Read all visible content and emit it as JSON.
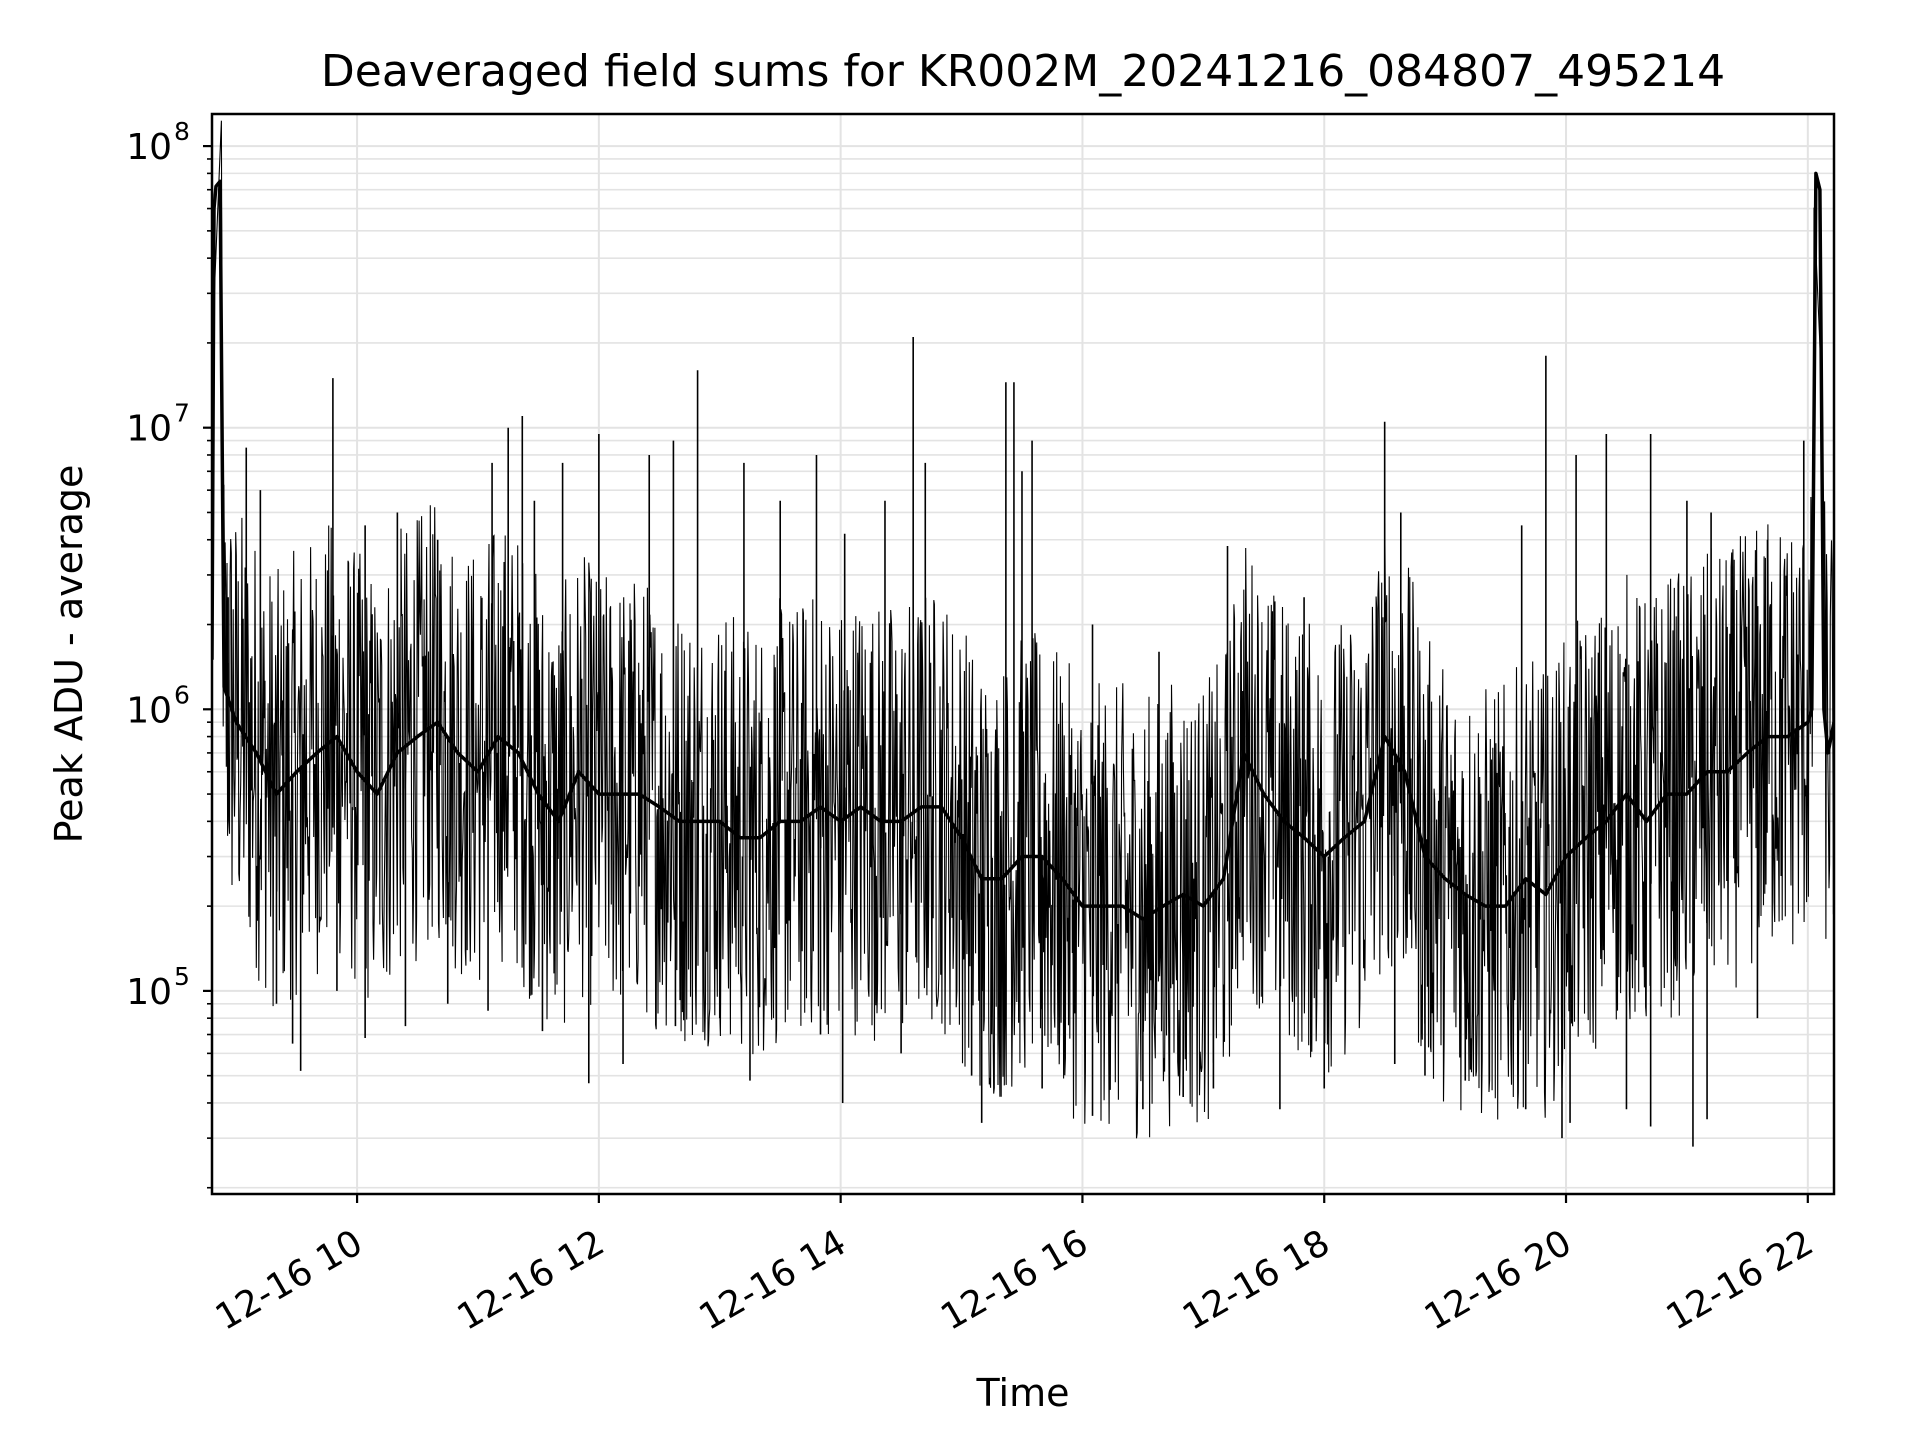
{
  "chart_data": {
    "type": "line",
    "title": "Deaveraged field sums for KR002M_20241216_084807_495214",
    "xlabel": "Time",
    "ylabel": "Peak ADU - average",
    "y_scale": "log",
    "ylim": [
      19000,
      130000000
    ],
    "xlim": [
      "2024-12-16 08:48",
      "2024-12-16 22:13"
    ],
    "x_ticks": [
      {
        "t": "2024-12-16 10:00",
        "label": "12-16 10"
      },
      {
        "t": "2024-12-16 12:00",
        "label": "12-16 12"
      },
      {
        "t": "2024-12-16 14:00",
        "label": "12-16 14"
      },
      {
        "t": "2024-12-16 16:00",
        "label": "12-16 16"
      },
      {
        "t": "2024-12-16 18:00",
        "label": "12-16 18"
      },
      {
        "t": "2024-12-16 20:00",
        "label": "12-16 20"
      },
      {
        "t": "2024-12-16 22:00",
        "label": "12-16 22"
      }
    ],
    "y_ticks": [
      {
        "value": 100000,
        "base": "10",
        "exp": "5"
      },
      {
        "value": 1000000,
        "base": "10",
        "exp": "6"
      },
      {
        "value": 10000000,
        "base": "10",
        "exp": "7"
      },
      {
        "value": 100000000,
        "base": "10",
        "exp": "8"
      }
    ],
    "grid": true,
    "line_color": "#000000",
    "grid_color": "#e3e3e3",
    "series": [
      {
        "x": [
          "2024-12-16 08:48",
          "2024-12-16 08:49",
          "2024-12-16 08:50",
          "2024-12-16 08:52",
          "2024-12-16 08:54",
          "2024-12-16 09:00",
          "2024-12-16 09:10",
          "2024-12-16 09:20",
          "2024-12-16 09:30",
          "2024-12-16 09:40",
          "2024-12-16 09:50",
          "2024-12-16 10:00",
          "2024-12-16 10:10",
          "2024-12-16 10:20",
          "2024-12-16 10:30",
          "2024-12-16 10:40",
          "2024-12-16 10:50",
          "2024-12-16 11:00",
          "2024-12-16 11:10",
          "2024-12-16 11:20",
          "2024-12-16 11:30",
          "2024-12-16 11:40",
          "2024-12-16 11:50",
          "2024-12-16 12:00",
          "2024-12-16 12:10",
          "2024-12-16 12:20",
          "2024-12-16 12:30",
          "2024-12-16 12:40",
          "2024-12-16 12:50",
          "2024-12-16 13:00",
          "2024-12-16 13:10",
          "2024-12-16 13:20",
          "2024-12-16 13:30",
          "2024-12-16 13:40",
          "2024-12-16 13:50",
          "2024-12-16 14:00",
          "2024-12-16 14:10",
          "2024-12-16 14:20",
          "2024-12-16 14:30",
          "2024-12-16 14:40",
          "2024-12-16 14:50",
          "2024-12-16 15:00",
          "2024-12-16 15:10",
          "2024-12-16 15:20",
          "2024-12-16 15:30",
          "2024-12-16 15:40",
          "2024-12-16 15:50",
          "2024-12-16 16:00",
          "2024-12-16 16:10",
          "2024-12-16 16:20",
          "2024-12-16 16:30",
          "2024-12-16 16:40",
          "2024-12-16 16:50",
          "2024-12-16 17:00",
          "2024-12-16 17:10",
          "2024-12-16 17:20",
          "2024-12-16 17:30",
          "2024-12-16 17:40",
          "2024-12-16 17:50",
          "2024-12-16 18:00",
          "2024-12-16 18:10",
          "2024-12-16 18:20",
          "2024-12-16 18:30",
          "2024-12-16 18:40",
          "2024-12-16 18:50",
          "2024-12-16 19:00",
          "2024-12-16 19:10",
          "2024-12-16 19:20",
          "2024-12-16 19:30",
          "2024-12-16 19:40",
          "2024-12-16 19:50",
          "2024-12-16 20:00",
          "2024-12-16 20:10",
          "2024-12-16 20:20",
          "2024-12-16 20:30",
          "2024-12-16 20:40",
          "2024-12-16 20:50",
          "2024-12-16 21:00",
          "2024-12-16 21:10",
          "2024-12-16 21:20",
          "2024-12-16 21:30",
          "2024-12-16 21:40",
          "2024-12-16 21:50",
          "2024-12-16 22:00",
          "2024-12-16 22:02",
          "2024-12-16 22:04",
          "2024-12-16 22:06",
          "2024-12-16 22:08",
          "2024-12-16 22:10",
          "2024-12-16 22:13"
        ],
        "y": [
          1500000,
          60000000,
          72000000,
          75000000,
          1200000,
          900000,
          700000,
          500000,
          600000,
          700000,
          800000,
          600000,
          500000,
          700000,
          800000,
          900000,
          700000,
          600000,
          800000,
          700000,
          500000,
          400000,
          600000,
          500000,
          500000,
          500000,
          450000,
          400000,
          400000,
          400000,
          350000,
          350000,
          400000,
          400000,
          450000,
          400000,
          450000,
          400000,
          400000,
          450000,
          450000,
          350000,
          250000,
          250000,
          300000,
          300000,
          250000,
          200000,
          200000,
          200000,
          180000,
          200000,
          220000,
          200000,
          250000,
          700000,
          500000,
          400000,
          350000,
          300000,
          350000,
          400000,
          800000,
          600000,
          300000,
          250000,
          220000,
          200000,
          200000,
          250000,
          220000,
          300000,
          350000,
          400000,
          500000,
          400000,
          500000,
          500000,
          600000,
          600000,
          700000,
          800000,
          800000,
          900000,
          1000000,
          80000000,
          70000000,
          1000000,
          700000,
          900000
        ]
      }
    ],
    "spikes": [
      {
        "t": "2024-12-16 08:56",
        "value": 2500000
      },
      {
        "t": "2024-12-16 09:05",
        "value": 8500000
      },
      {
        "t": "2024-12-16 09:12",
        "value": 6000000
      },
      {
        "t": "2024-12-16 09:48",
        "value": 15000000
      },
      {
        "t": "2024-12-16 10:04",
        "value": 4500000
      },
      {
        "t": "2024-12-16 10:20",
        "value": 5000000
      },
      {
        "t": "2024-12-16 10:40",
        "value": 4000000
      },
      {
        "t": "2024-12-16 11:07",
        "value": 7500000
      },
      {
        "t": "2024-12-16 11:15",
        "value": 10000000
      },
      {
        "t": "2024-12-16 11:22",
        "value": 11000000
      },
      {
        "t": "2024-12-16 11:28",
        "value": 5500000
      },
      {
        "t": "2024-12-16 11:42",
        "value": 7500000
      },
      {
        "t": "2024-12-16 12:00",
        "value": 9500000
      },
      {
        "t": "2024-12-16 12:25",
        "value": 8000000
      },
      {
        "t": "2024-12-16 12:37",
        "value": 9000000
      },
      {
        "t": "2024-12-16 12:49",
        "value": 16000000
      },
      {
        "t": "2024-12-16 13:12",
        "value": 7500000
      },
      {
        "t": "2024-12-16 13:30",
        "value": 5500000
      },
      {
        "t": "2024-12-16 13:48",
        "value": 8000000
      },
      {
        "t": "2024-12-16 14:02",
        "value": 4200000
      },
      {
        "t": "2024-12-16 14:22",
        "value": 5500000
      },
      {
        "t": "2024-12-16 14:36",
        "value": 21000000
      },
      {
        "t": "2024-12-16 14:42",
        "value": 7500000
      },
      {
        "t": "2024-12-16 15:22",
        "value": 14500000
      },
      {
        "t": "2024-12-16 15:26",
        "value": 14500000
      },
      {
        "t": "2024-12-16 15:30",
        "value": 7000000
      },
      {
        "t": "2024-12-16 15:35",
        "value": 9000000
      },
      {
        "t": "2024-12-16 16:05",
        "value": 2000000
      },
      {
        "t": "2024-12-16 16:38",
        "value": 1600000
      },
      {
        "t": "2024-12-16 17:12",
        "value": 3800000
      },
      {
        "t": "2024-12-16 17:50",
        "value": 2500000
      },
      {
        "t": "2024-12-16 18:30",
        "value": 10500000
      },
      {
        "t": "2024-12-16 18:38",
        "value": 5000000
      },
      {
        "t": "2024-12-16 19:38",
        "value": 4500000
      },
      {
        "t": "2024-12-16 19:50",
        "value": 18000000
      },
      {
        "t": "2024-12-16 20:05",
        "value": 8000000
      },
      {
        "t": "2024-12-16 20:20",
        "value": 9500000
      },
      {
        "t": "2024-12-16 20:42",
        "value": 9500000
      },
      {
        "t": "2024-12-16 21:00",
        "value": 5500000
      },
      {
        "t": "2024-12-16 21:12",
        "value": 5000000
      },
      {
        "t": "2024-12-16 21:40",
        "value": 4000000
      },
      {
        "t": "2024-12-16 21:58",
        "value": 9000000
      }
    ],
    "dips": [
      {
        "t": "2024-12-16 09:20",
        "value": 90000
      },
      {
        "t": "2024-12-16 09:28",
        "value": 65000
      },
      {
        "t": "2024-12-16 09:32",
        "value": 52000
      },
      {
        "t": "2024-12-16 09:50",
        "value": 100000
      },
      {
        "t": "2024-12-16 10:04",
        "value": 68000
      },
      {
        "t": "2024-12-16 10:24",
        "value": 75000
      },
      {
        "t": "2024-12-16 10:45",
        "value": 90000
      },
      {
        "t": "2024-12-16 11:05",
        "value": 85000
      },
      {
        "t": "2024-12-16 11:32",
        "value": 72000
      },
      {
        "t": "2024-12-16 11:55",
        "value": 47000
      },
      {
        "t": "2024-12-16 12:12",
        "value": 55000
      },
      {
        "t": "2024-12-16 12:38",
        "value": 75000
      },
      {
        "t": "2024-12-16 13:00",
        "value": 80000
      },
      {
        "t": "2024-12-16 13:15",
        "value": 48000
      },
      {
        "t": "2024-12-16 13:50",
        "value": 70000
      },
      {
        "t": "2024-12-16 14:01",
        "value": 40000
      },
      {
        "t": "2024-12-16 14:30",
        "value": 60000
      },
      {
        "t": "2024-12-16 15:05",
        "value": 50000
      },
      {
        "t": "2024-12-16 15:10",
        "value": 34000
      },
      {
        "t": "2024-12-16 15:40",
        "value": 45000
      },
      {
        "t": "2024-12-16 16:05",
        "value": 36000
      },
      {
        "t": "2024-12-16 16:30",
        "value": 38000
      },
      {
        "t": "2024-12-16 16:50",
        "value": 42000
      },
      {
        "t": "2024-12-16 17:05",
        "value": 45000
      },
      {
        "t": "2024-12-16 17:38",
        "value": 38000
      },
      {
        "t": "2024-12-16 18:00",
        "value": 45000
      },
      {
        "t": "2024-12-16 18:35",
        "value": 55000
      },
      {
        "t": "2024-12-16 18:50",
        "value": 50000
      },
      {
        "t": "2024-12-16 19:10",
        "value": 48000
      },
      {
        "t": "2024-12-16 19:40",
        "value": 38000
      },
      {
        "t": "2024-12-16 19:58",
        "value": 30000
      },
      {
        "t": "2024-12-16 20:02",
        "value": 34000
      },
      {
        "t": "2024-12-16 20:30",
        "value": 38000
      },
      {
        "t": "2024-12-16 20:42",
        "value": 33000
      },
      {
        "t": "2024-12-16 21:03",
        "value": 28000
      },
      {
        "t": "2024-12-16 21:10",
        "value": 35000
      },
      {
        "t": "2024-12-16 21:35",
        "value": 80000
      }
    ]
  }
}
